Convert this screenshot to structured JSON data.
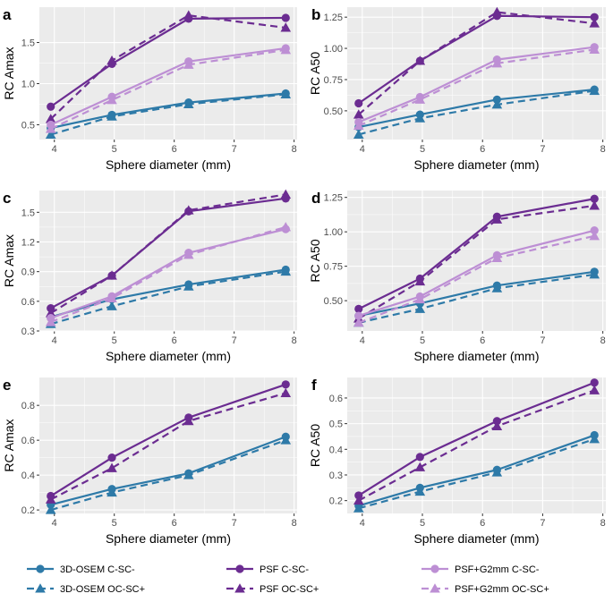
{
  "colors": {
    "osem": "#2e7aa8",
    "psf": "#6b2c91",
    "psfg2": "#bd8fd4",
    "panel_bg": "#ebebeb",
    "grid": "#ffffff",
    "tick": "#4d4d4d"
  },
  "legend": {
    "items": [
      {
        "label": "3D-OSEM C-SC-",
        "series_color": "osem",
        "marker": "circle",
        "dash": false
      },
      {
        "label": "3D-OSEM OC-SC+",
        "series_color": "osem",
        "marker": "triangle",
        "dash": true
      },
      {
        "label": "PSF C-SC-",
        "series_color": "psf",
        "marker": "circle",
        "dash": false
      },
      {
        "label": "PSF OC-SC+",
        "series_color": "psf",
        "marker": "triangle",
        "dash": true
      },
      {
        "label": "PSF+G2mm C-SC-",
        "series_color": "psfg2",
        "marker": "circle",
        "dash": false
      },
      {
        "label": "PSF+G2mm OC-SC+",
        "series_color": "psfg2",
        "marker": "triangle",
        "dash": true
      }
    ]
  },
  "chart_data": [
    {
      "panel": "a",
      "type": "line",
      "xlabel": "Sphere diameter (mm)",
      "ylabel": "RC Amax",
      "x": [
        3.94,
        4.96,
        6.24,
        7.86
      ],
      "xlim": [
        3.75,
        8.05
      ],
      "xticks": [
        4,
        5,
        6,
        7,
        8
      ],
      "ylim": [
        0.32,
        1.93
      ],
      "yticks": [
        0.5,
        1.0,
        1.5
      ],
      "ytick_labels": [
        "0.5",
        "1.0",
        "1.5"
      ],
      "series": [
        {
          "name": "3D-OSEM C-SC-",
          "color": "osem",
          "marker": "circle",
          "dash": false,
          "values": [
            0.46,
            0.62,
            0.77,
            0.88
          ]
        },
        {
          "name": "3D-OSEM OC-SC+",
          "color": "osem",
          "marker": "triangle",
          "dash": true,
          "values": [
            0.38,
            0.6,
            0.75,
            0.87
          ]
        },
        {
          "name": "PSF C-SC-",
          "color": "psf",
          "marker": "circle",
          "dash": false,
          "values": [
            0.72,
            1.24,
            1.79,
            1.8
          ]
        },
        {
          "name": "PSF OC-SC+",
          "color": "psf",
          "marker": "triangle",
          "dash": true,
          "values": [
            0.57,
            1.28,
            1.83,
            1.68
          ]
        },
        {
          "name": "PSF+G2mm C-SC-",
          "color": "psfg2",
          "marker": "circle",
          "dash": false,
          "values": [
            0.5,
            0.84,
            1.27,
            1.43
          ]
        },
        {
          "name": "PSF+G2mm OC-SC+",
          "color": "psfg2",
          "marker": "triangle",
          "dash": true,
          "values": [
            0.45,
            0.8,
            1.23,
            1.41
          ]
        }
      ]
    },
    {
      "panel": "b",
      "type": "line",
      "xlabel": "Sphere diameter (mm)",
      "ylabel": "RC A50",
      "x": [
        3.94,
        4.96,
        6.24,
        7.86
      ],
      "xlim": [
        3.75,
        8.05
      ],
      "xticks": [
        4,
        5,
        6,
        7,
        8
      ],
      "ylim": [
        0.27,
        1.33
      ],
      "yticks": [
        0.5,
        0.75,
        1.0,
        1.25
      ],
      "ytick_labels": [
        "0.50",
        "0.75",
        "1.00",
        "1.25"
      ],
      "series": [
        {
          "name": "3D-OSEM C-SC-",
          "color": "osem",
          "marker": "circle",
          "dash": false,
          "values": [
            0.37,
            0.47,
            0.59,
            0.67
          ]
        },
        {
          "name": "3D-OSEM OC-SC+",
          "color": "osem",
          "marker": "triangle",
          "dash": true,
          "values": [
            0.31,
            0.44,
            0.55,
            0.66
          ]
        },
        {
          "name": "PSF C-SC-",
          "color": "psf",
          "marker": "circle",
          "dash": false,
          "values": [
            0.56,
            0.9,
            1.26,
            1.25
          ]
        },
        {
          "name": "PSF OC-SC+",
          "color": "psf",
          "marker": "triangle",
          "dash": true,
          "values": [
            0.47,
            0.9,
            1.29,
            1.2
          ]
        },
        {
          "name": "PSF+G2mm C-SC-",
          "color": "psfg2",
          "marker": "circle",
          "dash": false,
          "values": [
            0.41,
            0.61,
            0.91,
            1.01
          ]
        },
        {
          "name": "PSF+G2mm OC-SC+",
          "color": "psfg2",
          "marker": "triangle",
          "dash": true,
          "values": [
            0.38,
            0.59,
            0.88,
            0.99
          ]
        }
      ]
    },
    {
      "panel": "c",
      "type": "line",
      "xlabel": "Sphere diameter (mm)",
      "ylabel": "RC Amax",
      "x": [
        3.94,
        4.96,
        6.24,
        7.86
      ],
      "xlim": [
        3.75,
        8.05
      ],
      "xticks": [
        4,
        5,
        6,
        7,
        8
      ],
      "ylim": [
        0.3,
        1.72
      ],
      "yticks": [
        0.3,
        0.6,
        0.9,
        1.2,
        1.5
      ],
      "ytick_labels": [
        "0.3",
        "0.6",
        "0.9",
        "1.2",
        "1.5"
      ],
      "series": [
        {
          "name": "3D-OSEM C-SC-",
          "color": "osem",
          "marker": "circle",
          "dash": false,
          "values": [
            0.44,
            0.62,
            0.77,
            0.92
          ]
        },
        {
          "name": "3D-OSEM OC-SC+",
          "color": "osem",
          "marker": "triangle",
          "dash": true,
          "values": [
            0.37,
            0.55,
            0.75,
            0.9
          ]
        },
        {
          "name": "PSF C-SC-",
          "color": "psf",
          "marker": "circle",
          "dash": false,
          "values": [
            0.53,
            0.86,
            1.51,
            1.64
          ]
        },
        {
          "name": "PSF OC-SC+",
          "color": "psf",
          "marker": "triangle",
          "dash": true,
          "values": [
            0.48,
            0.86,
            1.52,
            1.68
          ]
        },
        {
          "name": "PSF+G2mm C-SC-",
          "color": "psfg2",
          "marker": "circle",
          "dash": false,
          "values": [
            0.43,
            0.65,
            1.09,
            1.33
          ]
        },
        {
          "name": "PSF+G2mm OC-SC+",
          "color": "psfg2",
          "marker": "triangle",
          "dash": true,
          "values": [
            0.39,
            0.63,
            1.07,
            1.35
          ]
        }
      ]
    },
    {
      "panel": "d",
      "type": "line",
      "xlabel": "Sphere diameter (mm)",
      "ylabel": "RC A50",
      "x": [
        3.94,
        4.96,
        6.24,
        7.86
      ],
      "xlim": [
        3.75,
        8.05
      ],
      "xticks": [
        4,
        5,
        6,
        7,
        8
      ],
      "ylim": [
        0.28,
        1.3
      ],
      "yticks": [
        0.5,
        0.75,
        1.0,
        1.25
      ],
      "ytick_labels": [
        "0.50",
        "0.75",
        "1.00",
        "1.25"
      ],
      "series": [
        {
          "name": "3D-OSEM C-SC-",
          "color": "osem",
          "marker": "circle",
          "dash": false,
          "values": [
            0.39,
            0.48,
            0.61,
            0.71
          ]
        },
        {
          "name": "3D-OSEM OC-SC+",
          "color": "osem",
          "marker": "triangle",
          "dash": true,
          "values": [
            0.34,
            0.44,
            0.59,
            0.69
          ]
        },
        {
          "name": "PSF C-SC-",
          "color": "psf",
          "marker": "circle",
          "dash": false,
          "values": [
            0.44,
            0.66,
            1.11,
            1.24
          ]
        },
        {
          "name": "PSF OC-SC+",
          "color": "psf",
          "marker": "triangle",
          "dash": true,
          "values": [
            0.37,
            0.64,
            1.09,
            1.19
          ]
        },
        {
          "name": "PSF+G2mm C-SC-",
          "color": "psfg2",
          "marker": "circle",
          "dash": false,
          "values": [
            0.39,
            0.53,
            0.83,
            1.01
          ]
        },
        {
          "name": "PSF+G2mm OC-SC+",
          "color": "psfg2",
          "marker": "triangle",
          "dash": true,
          "values": [
            0.34,
            0.51,
            0.81,
            0.97
          ]
        }
      ]
    },
    {
      "panel": "e",
      "type": "line",
      "xlabel": "Sphere diameter (mm)",
      "ylabel": "RC Amax",
      "x": [
        3.94,
        4.96,
        6.24,
        7.86
      ],
      "xlim": [
        3.75,
        8.05
      ],
      "xticks": [
        4,
        5,
        6,
        7,
        8
      ],
      "ylim": [
        0.18,
        0.96
      ],
      "yticks": [
        0.2,
        0.4,
        0.6,
        0.8
      ],
      "ytick_labels": [
        "0.2",
        "0.4",
        "0.6",
        "0.8"
      ],
      "series": [
        {
          "name": "3D-OSEM C-SC-",
          "color": "osem",
          "marker": "circle",
          "dash": false,
          "values": [
            0.23,
            0.32,
            0.41,
            0.62
          ]
        },
        {
          "name": "3D-OSEM OC-SC+",
          "color": "osem",
          "marker": "triangle",
          "dash": true,
          "values": [
            0.2,
            0.3,
            0.4,
            0.6
          ]
        },
        {
          "name": "PSF C-SC-",
          "color": "psf",
          "marker": "circle",
          "dash": false,
          "values": [
            0.28,
            0.5,
            0.73,
            0.92
          ]
        },
        {
          "name": "PSF OC-SC+",
          "color": "psf",
          "marker": "triangle",
          "dash": true,
          "values": [
            0.26,
            0.44,
            0.71,
            0.87
          ]
        }
      ]
    },
    {
      "panel": "f",
      "type": "line",
      "xlabel": "Sphere diameter (mm)",
      "ylabel": "RC A50",
      "x": [
        3.94,
        4.96,
        6.24,
        7.86
      ],
      "xlim": [
        3.75,
        8.05
      ],
      "xticks": [
        4,
        5,
        6,
        7,
        8
      ],
      "ylim": [
        0.15,
        0.68
      ],
      "yticks": [
        0.2,
        0.3,
        0.4,
        0.5,
        0.6
      ],
      "ytick_labels": [
        "0.2",
        "0.3",
        "0.4",
        "0.5",
        "0.6"
      ],
      "series": [
        {
          "name": "3D-OSEM C-SC-",
          "color": "osem",
          "marker": "circle",
          "dash": false,
          "values": [
            0.18,
            0.25,
            0.32,
            0.455
          ]
        },
        {
          "name": "3D-OSEM OC-SC+",
          "color": "osem",
          "marker": "triangle",
          "dash": true,
          "values": [
            0.17,
            0.235,
            0.31,
            0.44
          ]
        },
        {
          "name": "PSF C-SC-",
          "color": "psf",
          "marker": "circle",
          "dash": false,
          "values": [
            0.22,
            0.37,
            0.51,
            0.66
          ]
        },
        {
          "name": "PSF OC-SC+",
          "color": "psf",
          "marker": "triangle",
          "dash": true,
          "values": [
            0.2,
            0.33,
            0.49,
            0.63
          ]
        }
      ]
    }
  ]
}
